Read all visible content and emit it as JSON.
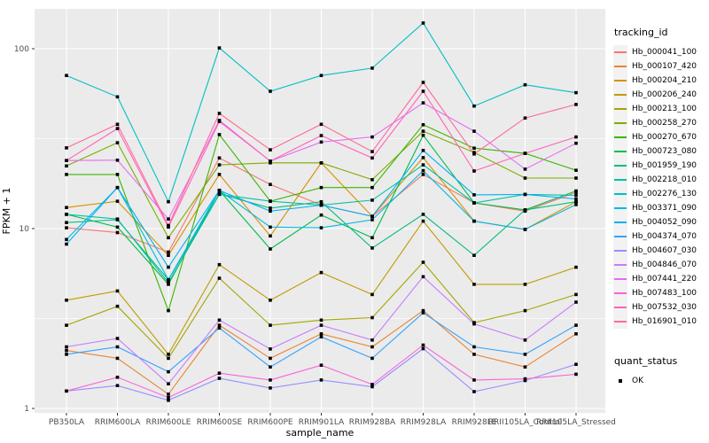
{
  "legend": {
    "tracking_title": "tracking_id",
    "quant_title": "quant_status",
    "quant_items": [
      {
        "label": "OK",
        "marker": "black-square"
      }
    ]
  },
  "y_axis": {
    "label": "FPKM + 1",
    "major_ticks": [
      1,
      10,
      100
    ],
    "minor_ticks": [
      3.16,
      31.6
    ],
    "scale": "log10"
  },
  "x_axis": {
    "label": "sample_name"
  },
  "chart_data": {
    "type": "line",
    "xlabel": "sample_name",
    "ylabel": "FPKM + 1",
    "yscale": "log",
    "ylim": [
      1,
      166
    ],
    "grid": "white-on-gray",
    "panel_bg": "#EBEBEB",
    "axis_text_color": "#4D4D4D",
    "legend_position": "right",
    "point_shape": "black-square",
    "categories": [
      "PB350LA",
      "RRIM600LA",
      "RRIM600LE",
      "RRIM600SE",
      "RRIM600PE",
      "RRIM901LA",
      "RRIM928BA",
      "RRIM928LA",
      "RRIM928LE",
      "RRII105LA_Control",
      "RRII105LA_Stressed"
    ],
    "series": [
      {
        "name": "Hb_000041_100",
        "color": "#F8766D",
        "values": [
          10.1,
          9.5,
          7.4,
          24.7,
          17.6,
          13.5,
          11.7,
          20.0,
          13.9,
          12.5,
          15.9
        ]
      },
      {
        "name": "Hb_000107_420",
        "color": "#EA8331",
        "values": [
          2.1,
          1.9,
          1.2,
          2.9,
          1.9,
          2.6,
          2.2,
          3.5,
          2.0,
          1.7,
          2.6
        ]
      },
      {
        "name": "Hb_000204_210",
        "color": "#D89000",
        "values": [
          13.1,
          14.2,
          7.1,
          20.0,
          9.1,
          23.2,
          11.7,
          24.8,
          11.0,
          9.9,
          14.1
        ]
      },
      {
        "name": "Hb_000206_240",
        "color": "#C09B00",
        "values": [
          4.0,
          4.5,
          2.0,
          6.3,
          4.0,
          5.7,
          4.3,
          11.0,
          4.9,
          4.9,
          6.1
        ]
      },
      {
        "name": "Hb_000213_100",
        "color": "#A3A500",
        "values": [
          2.9,
          3.7,
          1.9,
          5.3,
          2.9,
          3.1,
          3.2,
          6.5,
          3.0,
          3.5,
          4.3
        ]
      },
      {
        "name": "Hb_000258_270",
        "color": "#7CAE00",
        "values": [
          22.3,
          30.0,
          8.9,
          22.6,
          23.2,
          23.2,
          18.7,
          34.8,
          26.5,
          19.1,
          19.1
        ]
      },
      {
        "name": "Hb_000270_670",
        "color": "#39B600",
        "values": [
          20.0,
          20.0,
          3.5,
          33.3,
          14.2,
          16.9,
          16.9,
          37.8,
          28.0,
          26.2,
          21.1
        ]
      },
      {
        "name": "Hb_000723_080",
        "color": "#00BB4E",
        "values": [
          12.0,
          10.2,
          4.9,
          16.3,
          7.7,
          11.9,
          8.9,
          33.0,
          13.9,
          12.7,
          16.2
        ]
      },
      {
        "name": "Hb_001959_190",
        "color": "#00BF7D",
        "values": [
          10.8,
          11.2,
          5.2,
          15.6,
          13.0,
          14.1,
          7.8,
          12.0,
          7.1,
          12.7,
          14.1
        ]
      },
      {
        "name": "Hb_002218_010",
        "color": "#00C1A3",
        "values": [
          12.0,
          11.3,
          5.0,
          15.5,
          14.2,
          13.5,
          14.4,
          22.6,
          13.9,
          15.5,
          15.3
        ]
      },
      {
        "name": "Hb_002276_130",
        "color": "#00BFC4",
        "values": [
          71,
          54,
          14.1,
          101,
          58,
          71,
          78,
          139,
          48,
          63,
          57
        ]
      },
      {
        "name": "Hb_003371_090",
        "color": "#00BAE0",
        "values": [
          8.7,
          16.9,
          5.2,
          16.3,
          10.2,
          10.1,
          11.2,
          21.0,
          11.0,
          9.9,
          13.6
        ]
      },
      {
        "name": "Hb_004052_090",
        "color": "#00B0F6",
        "values": [
          8.2,
          16.9,
          6.1,
          16.3,
          12.5,
          13.5,
          11.7,
          27.2,
          15.4,
          15.5,
          14.6
        ]
      },
      {
        "name": "Hb_004374_070",
        "color": "#35A2FF",
        "values": [
          2.0,
          2.2,
          1.6,
          2.8,
          1.7,
          2.5,
          1.9,
          3.4,
          2.2,
          2.0,
          2.9
        ]
      },
      {
        "name": "Hb_004607_030",
        "color": "#9590FF",
        "values": [
          1.25,
          1.34,
          1.11,
          1.47,
          1.3,
          1.44,
          1.32,
          2.15,
          1.24,
          1.43,
          1.76
        ]
      },
      {
        "name": "Hb_004846_070",
        "color": "#C77CFF",
        "values": [
          2.2,
          2.45,
          1.37,
          3.1,
          2.14,
          2.9,
          2.4,
          5.4,
          2.95,
          2.4,
          3.9
        ]
      },
      {
        "name": "Hb_007441_220",
        "color": "#E76BF3",
        "values": [
          23.9,
          24.0,
          11.3,
          40.0,
          23.7,
          30.3,
          32.3,
          50.0,
          34.8,
          21.4,
          29.8
        ]
      },
      {
        "name": "Hb_007483_100",
        "color": "#FA62DB",
        "values": [
          1.25,
          1.49,
          1.15,
          1.57,
          1.44,
          1.74,
          1.36,
          2.25,
          1.44,
          1.46,
          1.55
        ]
      },
      {
        "name": "Hb_007532_030",
        "color": "#FF62BC",
        "values": [
          23.9,
          36.0,
          10.2,
          39.4,
          23.7,
          32.9,
          24.7,
          58.0,
          20.9,
          26.2,
          32.3
        ]
      },
      {
        "name": "Hb_016901_010",
        "color": "#FF6A98",
        "values": [
          28.1,
          38.0,
          10.4,
          43.7,
          27.4,
          38.0,
          26.8,
          65.0,
          26.0,
          41.2,
          49.0
        ]
      }
    ]
  }
}
